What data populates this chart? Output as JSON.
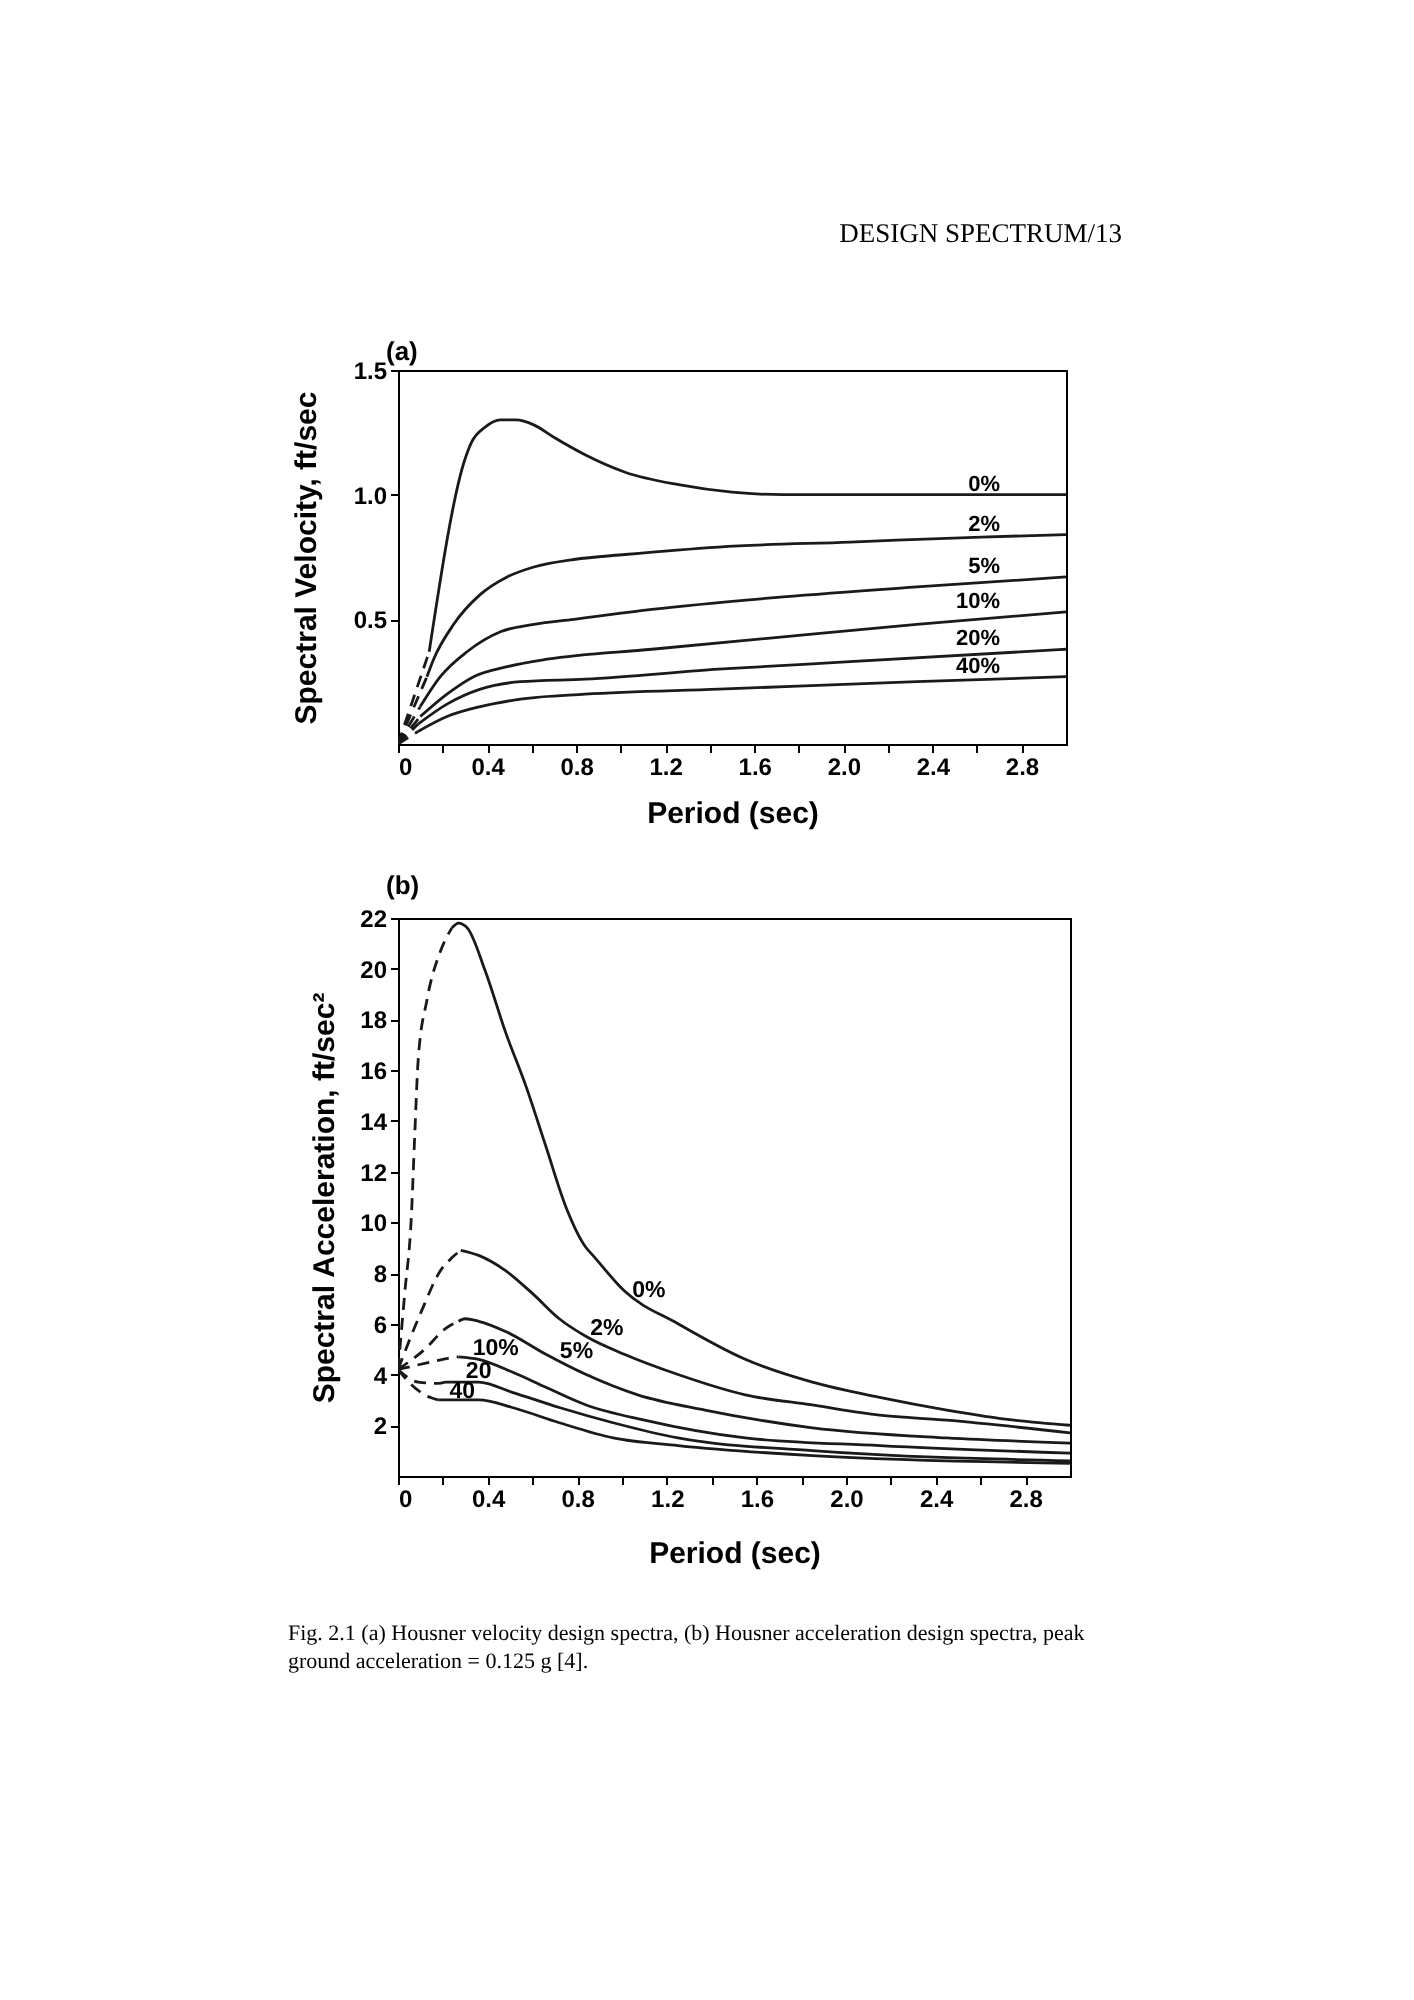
{
  "chart_data": [
    {
      "type": "line",
      "title": "(a)",
      "xlabel": "Period (sec)",
      "ylabel": "Spectral Velocity, ft/sec",
      "xlim": [
        0,
        3.0
      ],
      "ylim": [
        0,
        1.5
      ],
      "xticks": [
        0,
        {
          "value": 0.2,
          "label": null
        },
        0.4,
        {
          "value": 0.6,
          "label": null
        },
        0.8,
        {
          "value": 1,
          "label": null
        },
        1.2,
        {
          "value": 1.4,
          "label": null
        },
        1.6,
        {
          "value": 1.8,
          "label": null
        },
        {
          "value": 2,
          "label": "2.0"
        },
        {
          "value": 2.2,
          "label": null
        },
        2.4,
        {
          "value": 2.6,
          "label": null
        },
        2.8
      ],
      "yticks": [
        0.5,
        {
          "value": 1,
          "label": "1.0"
        },
        1.5
      ],
      "grid": false,
      "line_style": "solid",
      "annotations": [
        "DESIGN SPECTRUM/13"
      ],
      "series": [
        {
          "name": "0%",
          "color": "#1a1a1a",
          "x": [
            0.14,
            0.3,
            0.33,
            0.39,
            0.46,
            0.53,
            0.61,
            0.7,
            0.84,
            1.02,
            1.26,
            1.5,
            1.73,
            2.03,
            3.0
          ],
          "values": [
            0.37,
            1.14,
            1.21,
            1.27,
            1.3,
            1.3,
            1.28,
            1.23,
            1.16,
            1.09,
            1.04,
            1.01,
            1.0,
            1.0,
            1.0
          ]
        },
        {
          "name": "2%",
          "color": "#1a1a1a",
          "x": [
            0.13,
            0.16,
            0.25,
            0.37,
            0.49,
            0.61,
            0.79,
            1.02,
            1.44,
            2.03,
            2.62,
            3.0
          ],
          "values": [
            0.27,
            0.34,
            0.48,
            0.6,
            0.67,
            0.71,
            0.74,
            0.76,
            0.79,
            0.81,
            0.83,
            0.84
          ]
        },
        {
          "name": "5%",
          "color": "#1a1a1a",
          "x": [
            0.1,
            0.19,
            0.31,
            0.46,
            0.61,
            0.79,
            1.14,
            1.73,
            2.33,
            3.0
          ],
          "values": [
            0.15,
            0.27,
            0.37,
            0.45,
            0.48,
            0.5,
            0.54,
            0.59,
            0.63,
            0.67
          ]
        },
        {
          "name": "10%",
          "color": "#1a1a1a",
          "x": [
            0.1,
            0.22,
            0.34,
            0.49,
            0.67,
            1.14,
            1.73,
            2.33,
            3.0
          ],
          "values": [
            0.11,
            0.2,
            0.27,
            0.31,
            0.34,
            0.38,
            0.43,
            0.48,
            0.53
          ]
        },
        {
          "name": "20%",
          "color": "#1a1a1a",
          "x": [
            0.09,
            0.22,
            0.37,
            0.55,
            0.84,
            1.44,
            2.03,
            3.0
          ],
          "values": [
            0.08,
            0.16,
            0.22,
            0.25,
            0.26,
            0.3,
            0.33,
            0.38
          ]
        },
        {
          "name": "40%",
          "color": "#1a1a1a",
          "x": [
            0.09,
            0.22,
            0.37,
            0.55,
            0.84,
            1.44,
            2.33,
            3.0
          ],
          "values": [
            0.05,
            0.11,
            0.15,
            0.18,
            0.2,
            0.22,
            0.25,
            0.27
          ]
        },
        {
          "color": "#1a1a1a",
          "line_style": "dashed",
          "x": [
            0,
            0.14
          ],
          "values": [
            0,
            0.37
          ]
        },
        {
          "color": "#1a1a1a",
          "line_style": "dashed",
          "x": [
            0,
            0.13
          ],
          "values": [
            0,
            0.27
          ]
        },
        {
          "color": "#1a1a1a",
          "line_style": "dashed",
          "x": [
            0,
            0.1
          ],
          "values": [
            0,
            0.15
          ]
        },
        {
          "color": "#1a1a1a",
          "line_style": "dashed",
          "x": [
            0,
            0.1
          ],
          "values": [
            0,
            0.11
          ]
        },
        {
          "color": "#1a1a1a",
          "line_style": "dashed",
          "x": [
            0,
            0.09
          ],
          "values": [
            0,
            0.08
          ]
        },
        {
          "color": "#1a1a1a",
          "line_style": "dashed",
          "x": [
            0,
            0.09
          ],
          "values": [
            0,
            0.05
          ]
        }
      ]
    },
    {
      "type": "line",
      "title": "(b)",
      "xlabel": "Period (sec)",
      "ylabel": "Spectral Acceleration, ft/sec²",
      "xlim": [
        0,
        3.0
      ],
      "ylim": [
        0,
        22
      ],
      "xticks": [
        0,
        {
          "value": 0.2,
          "label": null
        },
        0.4,
        {
          "value": 0.6,
          "label": null
        },
        0.8,
        {
          "value": 1,
          "label": null
        },
        1.2,
        {
          "value": 1.4,
          "label": null
        },
        1.6,
        {
          "value": 1.8,
          "label": null
        },
        {
          "value": 2,
          "label": "2.0"
        },
        {
          "value": 2.2,
          "label": null
        },
        2.4,
        {
          "value": 2.6,
          "label": null
        },
        2.8
      ],
      "yticks": [
        2,
        4,
        6,
        8,
        10,
        12,
        14,
        16,
        18,
        20,
        22
      ],
      "grid": false,
      "line_style": "solid",
      "annotations": [
        "Fig. 2.1 (a) Housner velocity design spectra, (b) Housner acceleration design spectra, peak ground acceleration = 0.125 g [4]."
      ],
      "series": [
        {
          "name": "0%",
          "color": "#1a1a1a",
          "x": [
            0.24,
            0.27,
            0.31,
            0.39,
            0.48,
            0.57,
            0.66,
            0.75,
            0.84,
            0.87,
            1.01,
            1.25,
            1.55,
            1.85,
            2.15,
            2.45,
            2.75,
            3.0
          ],
          "values": [
            21.6,
            21.8,
            21.6,
            19.9,
            17.5,
            15.4,
            13.0,
            10.6,
            9.0,
            8.7,
            7.3,
            6.0,
            4.6,
            3.7,
            3.1,
            2.6,
            2.2,
            2.0
          ]
        },
        {
          "name": "2%",
          "color": "#1a1a1a",
          "x": [
            0.28,
            0.36,
            0.48,
            0.6,
            0.72,
            0.84,
            1.01,
            1.25,
            1.55,
            1.85,
            2.15,
            2.45,
            3.0
          ],
          "values": [
            8.9,
            8.7,
            8.1,
            7.2,
            6.2,
            5.5,
            4.8,
            4.0,
            3.2,
            2.8,
            2.4,
            2.2,
            1.7
          ]
        },
        {
          "name": "5%",
          "color": "#1a1a1a",
          "x": [
            0.27,
            0.3,
            0.36,
            0.48,
            0.66,
            0.84,
            1.07,
            1.37,
            1.85,
            2.45,
            3.0
          ],
          "values": [
            6.1,
            6.2,
            6.1,
            5.7,
            4.8,
            4.0,
            3.2,
            2.6,
            1.9,
            1.5,
            1.3
          ]
        },
        {
          "name": "10%",
          "color": "#1a1a1a",
          "x": [
            0.27,
            0.36,
            0.51,
            0.66,
            0.84,
            1.1,
            1.55,
            2.15,
            3.0
          ],
          "values": [
            4.7,
            4.6,
            4.1,
            3.5,
            2.8,
            2.2,
            1.5,
            1.2,
            0.9
          ]
        },
        {
          "name": "20",
          "color": "#1a1a1a",
          "x": [
            0.21,
            0.36,
            0.51,
            0.72,
            0.96,
            1.25,
            1.85,
            3.0
          ],
          "values": [
            3.7,
            3.7,
            3.3,
            2.7,
            2.1,
            1.5,
            1.0,
            0.6
          ]
        },
        {
          "name": "40",
          "color": "#1a1a1a",
          "x": [
            0.18,
            0.36,
            0.51,
            0.72,
            0.96,
            1.25,
            1.85,
            3.0
          ],
          "values": [
            3.0,
            3.0,
            2.7,
            2.1,
            1.5,
            1.2,
            0.8,
            0.5
          ]
        },
        {
          "color": "#1a1a1a",
          "line_style": "dashed",
          "x": [
            0,
            0.03,
            0.06,
            0.075,
            0.09,
            0.13,
            0.19,
            0.24
          ],
          "values": [
            4.2,
            7.2,
            10.3,
            13.5,
            16.4,
            18.8,
            20.7,
            21.6
          ]
        },
        {
          "color": "#1a1a1a",
          "line_style": "dashed",
          "x": [
            0,
            0.1,
            0.19,
            0.24,
            0.28
          ],
          "values": [
            4.2,
            6.4,
            8.1,
            8.6,
            8.9
          ]
        },
        {
          "color": "#1a1a1a",
          "line_style": "dashed",
          "x": [
            0,
            0.12,
            0.21,
            0.27
          ],
          "values": [
            4.2,
            5.0,
            5.8,
            6.1
          ]
        },
        {
          "color": "#1a1a1a",
          "line_style": "dashed",
          "x": [
            0,
            0.15,
            0.23,
            0.27
          ],
          "values": [
            4.2,
            4.5,
            4.65,
            4.7
          ]
        },
        {
          "color": "#1a1a1a",
          "line_style": "dashed",
          "x": [
            0,
            0.09,
            0.18,
            0.21
          ],
          "values": [
            4.2,
            3.7,
            3.65,
            3.7
          ]
        },
        {
          "color": "#1a1a1a",
          "line_style": "dashed",
          "x": [
            0,
            0.06,
            0.12,
            0.18
          ],
          "values": [
            4.2,
            3.6,
            3.2,
            3.0
          ]
        }
      ]
    }
  ]
}
